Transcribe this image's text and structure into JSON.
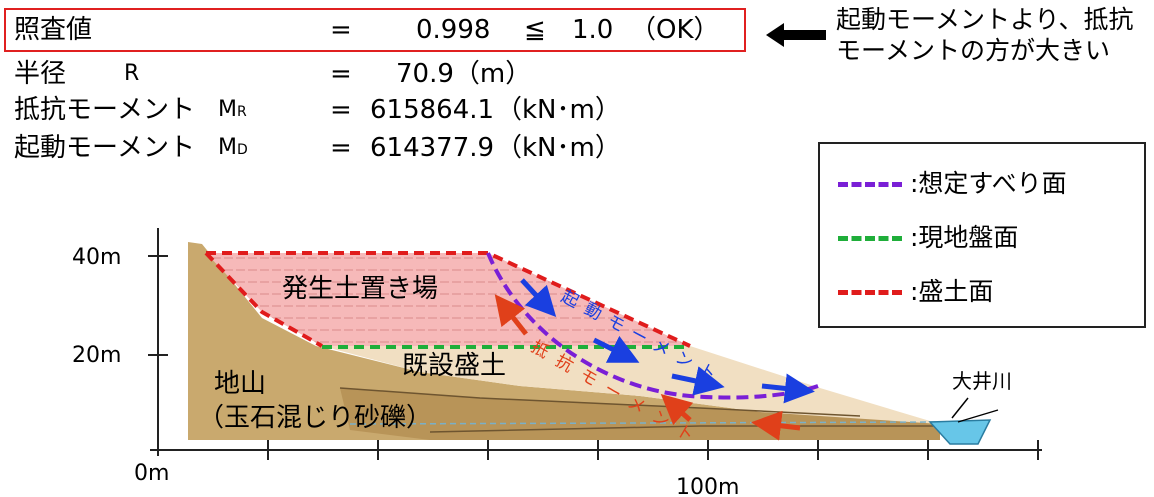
{
  "summary": {
    "check": {
      "label": "照査値",
      "eq": "=",
      "value": "0.998",
      "op": "≦",
      "limit": "1.0",
      "result": "（OK）"
    },
    "radius": {
      "label": "半径",
      "symbol": "R",
      "eq": "=",
      "value": "70.9（m）"
    },
    "resisting": {
      "label": "抵抗モーメント",
      "symbol": "M",
      "sub": "R",
      "eq": "=",
      "value": "615864.1",
      "unit": "（kN･m）"
    },
    "driving": {
      "label": "起動モーメント",
      "symbol": "M",
      "sub": "D",
      "eq": "=",
      "value": "614377.9",
      "unit": "（kN･m）"
    }
  },
  "note": {
    "line1": "起動モーメントより、抵抗",
    "line2": "モーメントの方が大きい"
  },
  "legend": [
    {
      "label": ":想定すべり面",
      "color": "#7a1fd6"
    },
    {
      "label": ":現地盤面",
      "color": "#1fae3a"
    },
    {
      "label": ":盛土面",
      "color": "#e01c1c"
    }
  ],
  "diagram": {
    "y_ticks": [
      "40m",
      "20m"
    ],
    "x_ticks": [
      "0m",
      "100m"
    ],
    "fill_label": "発生土置き場",
    "existing_fill_label": "既設盛土",
    "ground_label_1": "地山",
    "ground_label_2": "（玉石混じり砂礫）",
    "river_label": "大井川",
    "driving_label": "起動モーメント",
    "resisting_label": "抵抗モーメント"
  },
  "colors": {
    "box": "#e02020",
    "slip": "#7a1fd6",
    "ground": "#1fae3a",
    "fill": "#e01c1c",
    "driving_arrow": "#1a3fe0",
    "resisting_arrow": "#e0401a"
  }
}
